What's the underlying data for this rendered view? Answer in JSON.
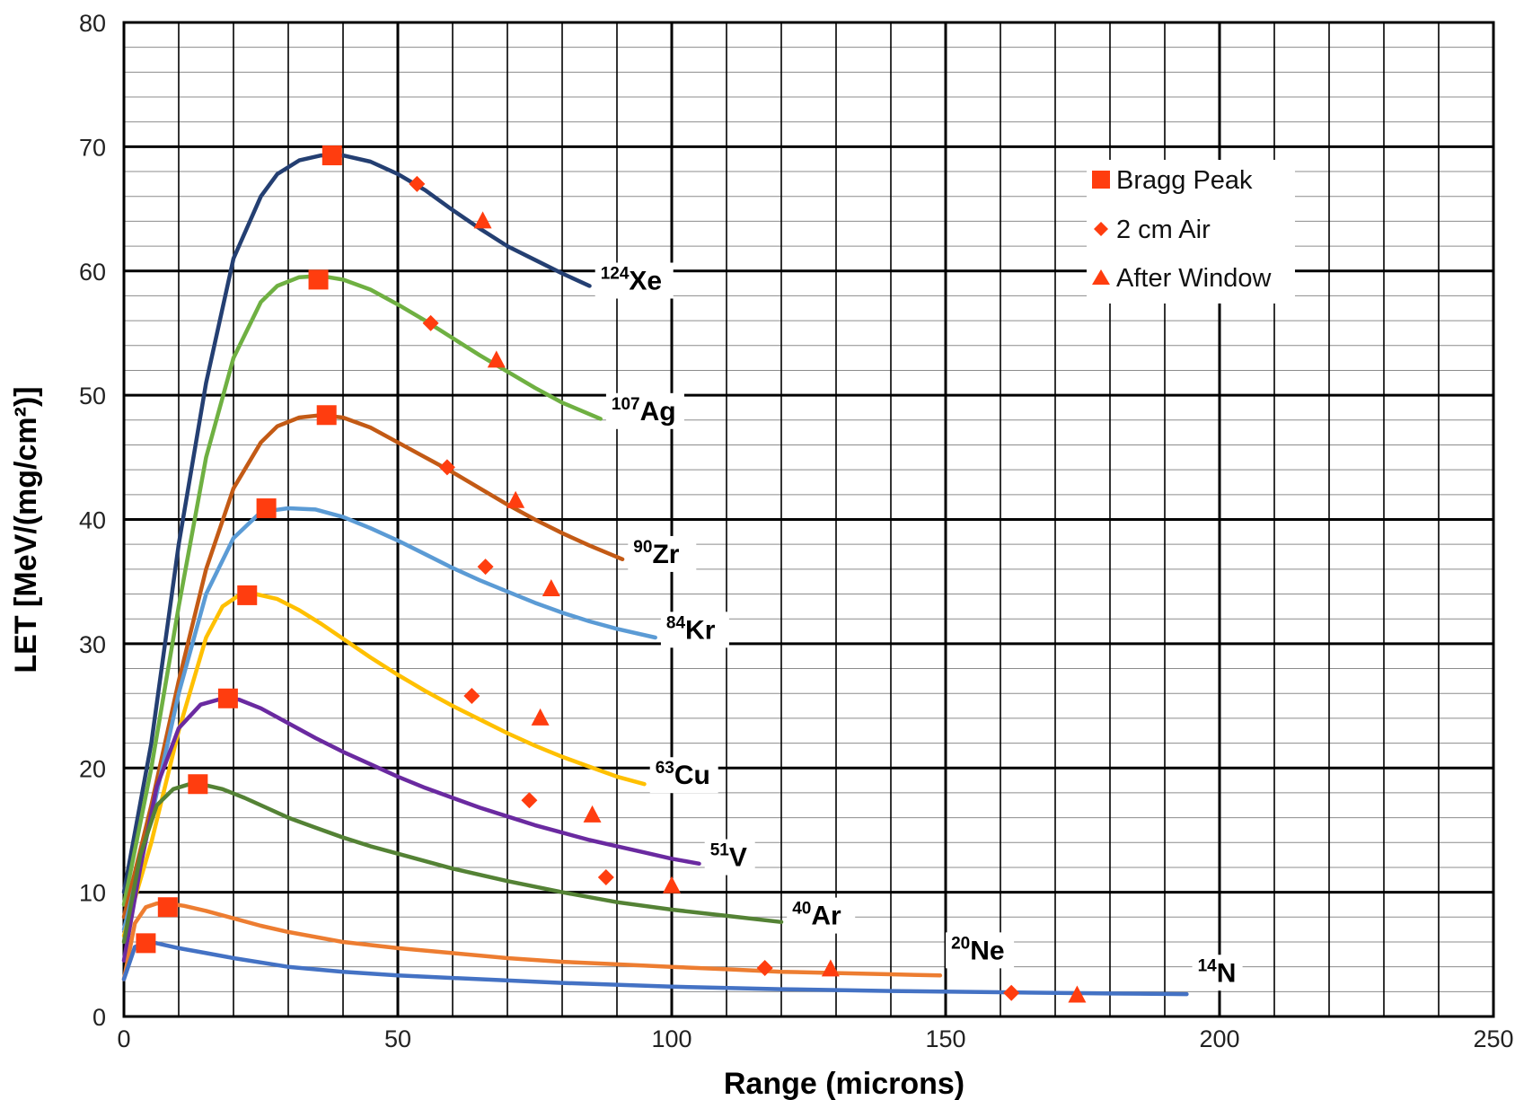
{
  "chart_data": {
    "type": "line",
    "title": "",
    "xlabel": "Range (microns)",
    "ylabel": "LET [MeV/(mg/cm²)]",
    "xlim": [
      0,
      250
    ],
    "ylim": [
      0,
      80
    ],
    "x_ticks": [
      "0",
      "50",
      "100",
      "150",
      "200",
      "250"
    ],
    "y_ticks": [
      "0",
      "10",
      "20",
      "30",
      "40",
      "50",
      "60",
      "70",
      "80"
    ],
    "x_major_step": 50,
    "x_minor_step": 10,
    "y_major_step": 10,
    "y_minor_step": 2,
    "grid": true,
    "legend_position": "top-right",
    "legend": [
      {
        "label": "Bragg Peak",
        "marker": "square"
      },
      {
        "label": "2 cm Air",
        "marker": "diamond"
      },
      {
        "label": "After Window",
        "marker": "triangle"
      }
    ],
    "marker_color": "#ff3d0f",
    "series": [
      {
        "name": "Xe",
        "mass": "124",
        "color": "#243f72",
        "x": [
          0,
          5,
          10,
          15,
          20,
          25,
          28,
          32,
          36,
          40,
          45,
          50,
          55,
          60,
          65,
          70,
          75,
          80,
          85
        ],
        "y": [
          10,
          22,
          38,
          51,
          61,
          66,
          67.8,
          68.9,
          69.3,
          69.3,
          68.8,
          67.8,
          66.5,
          64.9,
          63.4,
          62,
          60.9,
          59.8,
          58.8
        ],
        "label_x": 87,
        "label_y": 58.5,
        "bragg": [
          38,
          69.3
        ],
        "air": [
          53.5,
          67
        ],
        "window": [
          65.5,
          64
        ]
      },
      {
        "name": "Ag",
        "mass": "107",
        "color": "#6fb042",
        "x": [
          0,
          5,
          10,
          15,
          20,
          25,
          28,
          32,
          36,
          40,
          45,
          50,
          55,
          60,
          65,
          70,
          75,
          80,
          87
        ],
        "y": [
          9,
          20,
          33,
          45,
          53,
          57.5,
          58.8,
          59.5,
          59.6,
          59.3,
          58.5,
          57.3,
          56,
          54.6,
          53.2,
          51.9,
          50.6,
          49.4,
          48.1
        ],
        "label_x": 89,
        "label_y": 48,
        "bragg": [
          35.5,
          59.3
        ],
        "air": [
          56,
          55.8
        ],
        "window": [
          68,
          52.8
        ]
      },
      {
        "name": "Zr",
        "mass": "90",
        "color": "#c35a15",
        "x": [
          0,
          5,
          10,
          15,
          20,
          25,
          28,
          32,
          36,
          40,
          45,
          50,
          55,
          60,
          65,
          70,
          75,
          80,
          85,
          91
        ],
        "y": [
          8,
          17,
          27,
          36,
          42.5,
          46.2,
          47.5,
          48.2,
          48.4,
          48.2,
          47.4,
          46.2,
          45,
          43.8,
          42.5,
          41.2,
          40,
          38.9,
          37.9,
          36.8
        ],
        "label_x": 93,
        "label_y": 36.5,
        "bragg": [
          37,
          48.4
        ],
        "air": [
          59,
          44.2
        ],
        "window": [
          71.5,
          41.5
        ]
      },
      {
        "name": "Kr",
        "mass": "84",
        "color": "#5b9bd5",
        "x": [
          0,
          5,
          10,
          15,
          20,
          25,
          30,
          35,
          40,
          45,
          50,
          55,
          60,
          65,
          70,
          75,
          80,
          85,
          90,
          97
        ],
        "y": [
          7,
          16,
          26,
          34,
          38.5,
          40.6,
          40.9,
          40.8,
          40.2,
          39.3,
          38.3,
          37.2,
          36.1,
          35.1,
          34.2,
          33.3,
          32.5,
          31.8,
          31.2,
          30.5
        ],
        "label_x": 99,
        "label_y": 30.4,
        "bragg": [
          26,
          40.9
        ],
        "air": [
          66,
          36.2
        ],
        "window": [
          78,
          34.4
        ]
      },
      {
        "name": "Cu",
        "mass": "63",
        "color": "#ffc000",
        "x": [
          0,
          5,
          10,
          15,
          18,
          21,
          24,
          28,
          32,
          36,
          40,
          45,
          50,
          55,
          60,
          65,
          70,
          75,
          80,
          85,
          90,
          95
        ],
        "y": [
          6.5,
          14,
          23,
          30.5,
          33,
          33.9,
          34,
          33.6,
          32.7,
          31.6,
          30.4,
          28.9,
          27.5,
          26.2,
          25,
          23.9,
          22.8,
          21.8,
          20.9,
          20.1,
          19.3,
          18.7
        ],
        "label_x": 97,
        "label_y": 18.7,
        "bragg": [
          22.5,
          33.9
        ],
        "air": [
          63.5,
          25.8
        ],
        "window": [
          76,
          24
        ]
      },
      {
        "name": "V",
        "mass": "51",
        "color": "#6a2aa0",
        "x": [
          0,
          3,
          6,
          10,
          14,
          18,
          21,
          25,
          30,
          35,
          40,
          45,
          50,
          55,
          60,
          65,
          70,
          75,
          80,
          85,
          90,
          95,
          100,
          105
        ],
        "y": [
          4.5,
          12,
          18.5,
          23.2,
          25.1,
          25.6,
          25.5,
          24.8,
          23.6,
          22.4,
          21.3,
          20.3,
          19.3,
          18.4,
          17.6,
          16.8,
          16.1,
          15.4,
          14.8,
          14.2,
          13.7,
          13.2,
          12.7,
          12.3
        ],
        "label_x": 107,
        "label_y": 12.1,
        "bragg": [
          19,
          25.6
        ],
        "air": [
          74,
          17.4
        ],
        "window": [
          85.5,
          16.2
        ]
      },
      {
        "name": "Ar",
        "mass": "40",
        "color": "#548235",
        "x": [
          0,
          3,
          6,
          9,
          12,
          15,
          18,
          22,
          26,
          30,
          35,
          40,
          45,
          50,
          60,
          70,
          80,
          90,
          100,
          110,
          120
        ],
        "y": [
          6,
          13,
          17,
          18.3,
          18.7,
          18.6,
          18.3,
          17.6,
          16.8,
          16,
          15.2,
          14.4,
          13.7,
          13.1,
          11.9,
          10.9,
          10,
          9.2,
          8.6,
          8.1,
          7.6
        ],
        "label_x": 122,
        "label_y": 7.4,
        "bragg": [
          13.5,
          18.7
        ],
        "air": [
          88,
          11.2
        ],
        "window": [
          100,
          10.5
        ]
      },
      {
        "name": "Ne",
        "mass": "20",
        "color": "#ed7d31",
        "x": [
          0,
          2,
          4,
          6,
          8,
          11,
          15,
          20,
          25,
          30,
          40,
          50,
          60,
          70,
          80,
          90,
          100,
          110,
          120,
          130,
          140,
          149
        ],
        "y": [
          3,
          7.5,
          8.8,
          9.1,
          9.1,
          8.9,
          8.5,
          7.9,
          7.3,
          6.8,
          6,
          5.5,
          5.1,
          4.7,
          4.4,
          4.2,
          4,
          3.8,
          3.6,
          3.5,
          3.4,
          3.3
        ],
        "label_x": 151,
        "label_y": 4.6,
        "bragg": [
          8,
          8.8
        ],
        "air": [
          117,
          3.9
        ],
        "window": [
          129,
          3.8
        ]
      },
      {
        "name": "N",
        "mass": "14",
        "color": "#4472c4",
        "x": [
          0,
          2,
          4,
          6,
          10,
          15,
          20,
          30,
          40,
          50,
          60,
          80,
          100,
          120,
          140,
          160,
          180,
          194
        ],
        "y": [
          3,
          5.6,
          6,
          5.9,
          5.5,
          5.1,
          4.7,
          4,
          3.6,
          3.3,
          3.1,
          2.7,
          2.4,
          2.2,
          2.05,
          1.95,
          1.85,
          1.8
        ],
        "label_x": 196,
        "label_y": 2.8,
        "bragg": [
          4,
          5.9
        ],
        "air": [
          162,
          1.9
        ],
        "window": [
          174,
          1.7
        ]
      }
    ]
  }
}
